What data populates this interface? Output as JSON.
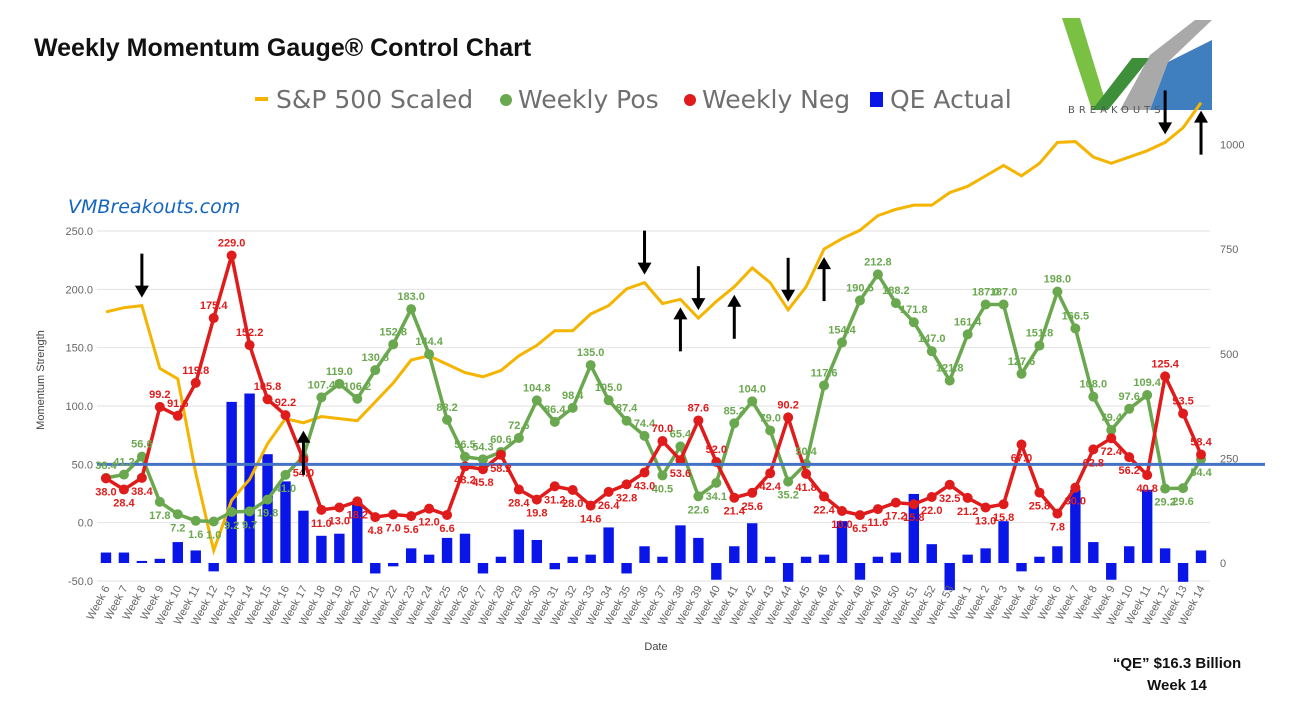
{
  "title": "Weekly Momentum Gauge® Control Chart",
  "site_label": "VMBreakouts.com",
  "logo": {
    "text": "BREAKOUTS",
    "accent_colors": [
      "#7ac043",
      "#3f7fc0",
      "#9a9a9a"
    ]
  },
  "annotation": {
    "line1": "“QE” $16.3 Billion",
    "line2": "Week 14"
  },
  "colors": {
    "sp500": "#f4b400",
    "pos": "#6aa84f",
    "neg": "#e01b1b",
    "qe": "#0a15e8",
    "ref_line": "#4472c4"
  },
  "chart_data": {
    "type": "line",
    "title": "Weekly Momentum Gauge® Control Chart",
    "xlabel": "Date",
    "ylabel": "Momentum Strength",
    "ylim": [
      -50,
      250
    ],
    "y_ticks": [
      "250.0",
      "200.0",
      "150.0",
      "100.0",
      "50.0",
      "0.0",
      "-50.0"
    ],
    "y2lim": [
      0,
      1000
    ],
    "y2_ticks": [
      "1000",
      "750",
      "500",
      "250",
      "0"
    ],
    "reference_line": 50,
    "legend_position": "top",
    "categories": [
      "Week 6",
      "Week 7",
      "Week 8",
      "Week 9",
      "Week 10",
      "Week 11",
      "Week 12",
      "Week 13",
      "Week 14",
      "Week 15",
      "Week 16",
      "Week 17",
      "Week 18",
      "Week 19",
      "Week 20",
      "Week 21",
      "Week 22",
      "Week 23",
      "Week 24",
      "Week 25",
      "Week 26",
      "Week 27",
      "Week 28",
      "Week 29",
      "Week 30",
      "Week 31",
      "Week 32",
      "Week 33",
      "Week 34",
      "Week 35",
      "Week 36",
      "Week 37",
      "Week 38",
      "Week 39",
      "Week 40",
      "Week 41",
      "Week 42",
      "Week 43",
      "Week 44",
      "Week 45",
      "Week 46",
      "Week 47",
      "Week 48",
      "Week 49",
      "Week 50",
      "Week 51",
      "Week 52",
      "Week 53",
      "Week 1",
      "Week 2",
      "Week 3",
      "Week 4",
      "Week 5",
      "Week 6",
      "Week 7",
      "Week 8",
      "Week 9",
      "Week 10",
      "Week 11",
      "Week 12",
      "Week 13",
      "Week 14"
    ],
    "series": [
      {
        "name": "S&P 500 Scaled",
        "axis": "right",
        "type": "line",
        "values": [
          600,
          610,
          615,
          465,
          440,
          215,
          30,
          150,
          200,
          285,
          345,
          335,
          350,
          345,
          340,
          385,
          430,
          485,
          495,
          475,
          455,
          445,
          460,
          495,
          520,
          555,
          555,
          595,
          615,
          655,
          670,
          620,
          630,
          585,
          625,
          660,
          705,
          670,
          605,
          660,
          750,
          775,
          795,
          830,
          845,
          855,
          855,
          885,
          900,
          925,
          950,
          925,
          955,
          1005,
          1007,
          970,
          955,
          970,
          985,
          1005,
          1040,
          1100
        ],
        "labels": []
      },
      {
        "name": "Weekly Pos",
        "axis": "left",
        "type": "line",
        "values": [
          38.4,
          41.2,
          56.6,
          17.8,
          7.2,
          1.6,
          1.0,
          9.2,
          9.7,
          19.8,
          41.0,
          56.6,
          107.4,
          119.0,
          106.2,
          130.8,
          152.8,
          183.0,
          144.4,
          88.2,
          56.5,
          54.3,
          60.6,
          72.6,
          104.8,
          86.4,
          98.4,
          135.0,
          105.0,
          87.4,
          74.4,
          40.5,
          65.4,
          22.6,
          34.1,
          85.2,
          104.0,
          79.0,
          35.2,
          50.4,
          117.6,
          154.4,
          190.5,
          212.8,
          188.2,
          171.8,
          147.0,
          121.8,
          161.4,
          187.0,
          187.0,
          127.6,
          151.8,
          198.0,
          166.5,
          108.0,
          79.4,
          97.6,
          109.4,
          29.2,
          29.6,
          54.4
        ],
        "labels": [
          "38.4",
          "41.2",
          "56.6",
          "17.8",
          "7.2",
          "1.6",
          "1.0",
          "9.2",
          "9.7",
          "19.8",
          "41.0",
          "",
          "107.4",
          "119.0",
          "106.2",
          "130.8",
          "152.8",
          "183.0",
          "144.4",
          "88.2",
          "56.5",
          "54.3",
          "60.6",
          "72.6",
          "104.8",
          "86.4",
          "98.4",
          "135.0",
          "105.0",
          "87.4",
          "74.4",
          "40.5",
          "65.4",
          "22.6",
          "34.1",
          "85.2",
          "104.0",
          "79.0",
          "35.2",
          "50.4",
          "117.6",
          "154.4",
          "190.5",
          "212.8",
          "188.2",
          "171.8",
          "147.0",
          "121.8",
          "161.4",
          "187.0",
          "187.0",
          "127.6",
          "151.8",
          "198.0",
          "166.5",
          "108.0",
          "79.4",
          "97.6",
          "109.4",
          "29.2",
          "29.6",
          "54.4"
        ]
      },
      {
        "name": "Weekly Neg",
        "axis": "left",
        "type": "line",
        "values": [
          38.0,
          28.4,
          38.4,
          99.2,
          91.6,
          119.8,
          175.4,
          229.0,
          152.2,
          105.8,
          92.2,
          54.0,
          11.0,
          13.0,
          18.2,
          4.8,
          7.0,
          5.6,
          12.0,
          6.6,
          48.2,
          45.8,
          58.2,
          28.4,
          19.8,
          31.2,
          28.0,
          14.6,
          26.4,
          32.8,
          43.0,
          70.0,
          53.6,
          87.6,
          52.0,
          21.4,
          25.6,
          42.4,
          90.2,
          41.8,
          22.4,
          10.0,
          6.5,
          11.6,
          17.2,
          15.8,
          22.0,
          32.5,
          21.2,
          13.0,
          15.8,
          67.0,
          25.8,
          7.8,
          30.0,
          62.8,
          72.4,
          56.2,
          40.8,
          125.4,
          93.5,
          58.4
        ],
        "labels": [
          "38.0",
          "28.4",
          "38.4",
          "99.2",
          "91.6",
          "119.8",
          "175.4",
          "229.0",
          "152.2",
          "105.8",
          "92.2",
          "54.0",
          "11.0",
          "13.0",
          "18.2",
          "4.8",
          "7.0",
          "5.6",
          "12.0",
          "6.6",
          "48.2",
          "45.8",
          "58.2",
          "28.4",
          "19.8",
          "31.2",
          "28.0",
          "14.6",
          "26.4",
          "32.8",
          "43.0",
          "70.0",
          "53.6",
          "87.6",
          "52.0",
          "21.4",
          "25.6",
          "42.4",
          "90.2",
          "41.8",
          "22.4",
          "10.0",
          "6.5",
          "11.6",
          "17.2",
          "15.8",
          "22.0",
          "32.5",
          "21.2",
          "13.0",
          "15.8",
          "67.0",
          "25.8",
          "7.8",
          "30.0",
          "62.8",
          "72.4",
          "56.2",
          "40.8",
          "125.4",
          "93.5",
          "58.4"
        ]
      },
      {
        "name": "QE Actual",
        "axis": "right",
        "type": "bar",
        "values": [
          25,
          25,
          5,
          10,
          50,
          30,
          -20,
          385,
          405,
          260,
          195,
          125,
          65,
          70,
          145,
          -25,
          -8,
          35,
          20,
          60,
          70,
          -25,
          15,
          80,
          55,
          -15,
          15,
          20,
          85,
          -25,
          40,
          15,
          90,
          60,
          -40,
          40,
          95,
          15,
          -45,
          15,
          20,
          100,
          -40,
          15,
          25,
          165,
          45,
          -65,
          20,
          35,
          100,
          -20,
          15,
          40,
          175,
          50,
          -40,
          40,
          175,
          35,
          -45,
          30
        ],
        "labels": []
      }
    ],
    "arrows": [
      {
        "direction": "down",
        "category_index": 2
      },
      {
        "direction": "up",
        "category_index": 11
      },
      {
        "direction": "down",
        "category_index": 30
      },
      {
        "direction": "up",
        "category_index": 32
      },
      {
        "direction": "down",
        "category_index": 33
      },
      {
        "direction": "up",
        "category_index": 35
      },
      {
        "direction": "down",
        "category_index": 38
      },
      {
        "direction": "up",
        "category_index": 40
      },
      {
        "direction": "down",
        "category_index": 59
      },
      {
        "direction": "up",
        "category_index": 61
      }
    ]
  }
}
